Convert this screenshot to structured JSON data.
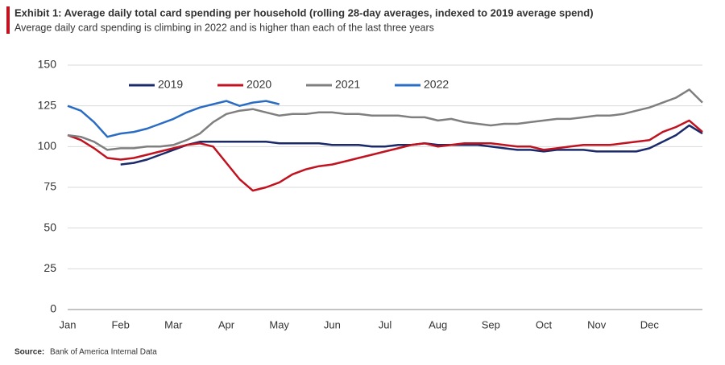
{
  "chart_data": {
    "type": "line",
    "title": "Exhibit 1: Average daily total card spending per household (rolling 28-day averages, indexed to 2019 average spend)",
    "subtitle": "Average daily card spending is climbing in 2022 and is higher than each of the last three years",
    "source_label": "Source:",
    "source": "Bank of America Internal Data",
    "categories": [
      "Jan",
      null,
      null,
      null,
      "Feb",
      null,
      null,
      null,
      "Mar",
      null,
      null,
      null,
      "Apr",
      null,
      null,
      null,
      "May",
      null,
      null,
      null,
      "Jun",
      null,
      null,
      null,
      "Jul",
      null,
      null,
      null,
      "Aug",
      null,
      null,
      null,
      "Sep",
      null,
      null,
      null,
      "Oct",
      null,
      null,
      null,
      "Nov",
      null,
      null,
      null,
      "Dec",
      null,
      null,
      null,
      null
    ],
    "series": [
      {
        "name": "2019",
        "color": "#1b2a6b",
        "values": [
          null,
          null,
          null,
          null,
          89,
          90,
          92,
          95,
          98,
          101,
          103,
          103,
          103,
          103,
          103,
          103,
          102,
          102,
          102,
          102,
          101,
          101,
          101,
          100,
          100,
          101,
          101,
          102,
          101,
          101,
          101,
          101,
          100,
          99,
          98,
          98,
          97,
          98,
          98,
          98,
          97,
          97,
          97,
          97,
          99,
          103,
          107,
          113,
          108
        ]
      },
      {
        "name": "2020",
        "color": "#c0121f",
        "values": [
          107,
          104,
          99,
          93,
          92,
          93,
          95,
          97,
          99,
          101,
          102,
          100,
          90,
          80,
          73,
          75,
          78,
          83,
          86,
          88,
          89,
          91,
          93,
          95,
          97,
          99,
          101,
          102,
          100,
          101,
          102,
          102,
          102,
          101,
          100,
          100,
          98,
          99,
          100,
          101,
          101,
          101,
          102,
          103,
          104,
          109,
          112,
          116,
          109
        ]
      },
      {
        "name": "2021",
        "color": "#7f7f7f",
        "values": [
          107,
          106,
          103,
          98,
          99,
          99,
          100,
          100,
          101,
          104,
          108,
          115,
          120,
          122,
          123,
          121,
          119,
          120,
          120,
          121,
          121,
          120,
          120,
          119,
          119,
          119,
          118,
          118,
          116,
          117,
          115,
          114,
          113,
          114,
          114,
          115,
          116,
          117,
          117,
          118,
          119,
          119,
          120,
          122,
          124,
          127,
          130,
          135,
          127
        ]
      },
      {
        "name": "2022",
        "color": "#2a6cc4",
        "values": [
          125,
          122,
          115,
          106,
          108,
          109,
          111,
          114,
          117,
          121,
          124,
          126,
          128,
          125,
          127,
          128,
          126,
          null,
          null,
          null,
          null,
          null,
          null,
          null,
          null,
          null,
          null,
          null,
          null,
          null,
          null,
          null,
          null,
          null,
          null,
          null,
          null,
          null,
          null,
          null,
          null,
          null,
          null,
          null,
          null,
          null,
          null,
          null,
          null
        ]
      }
    ],
    "ylim": [
      0,
      150
    ],
    "yticks": [
      0,
      25,
      50,
      75,
      100,
      125,
      150
    ],
    "grid": true
  }
}
